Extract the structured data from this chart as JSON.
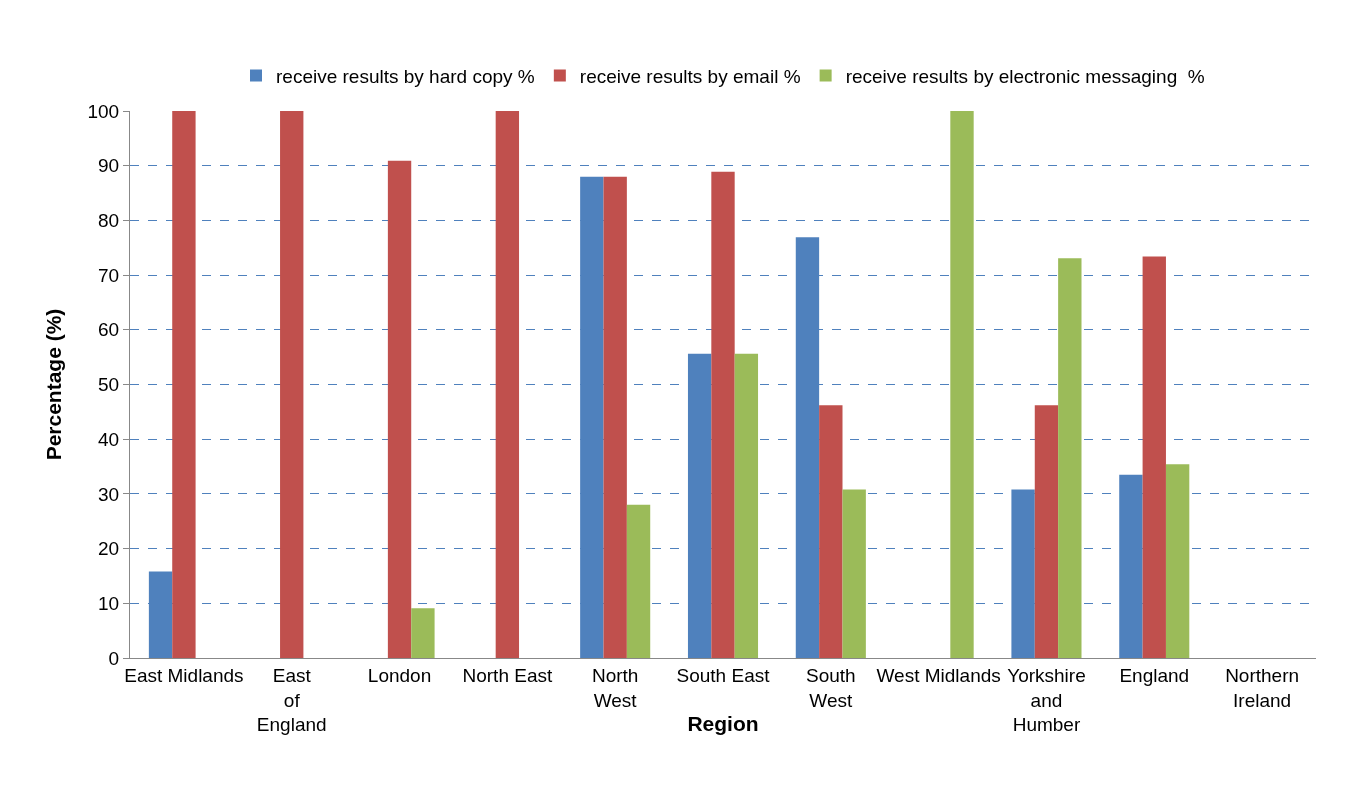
{
  "chart_data": {
    "type": "bar",
    "xlabel": "Region",
    "ylabel": "Percentage (%)",
    "categories": [
      "East Midlands",
      "East of England",
      "London",
      "North East",
      "North West",
      "South East",
      "South West",
      "West Midlands",
      "Yorkshire and Humber",
      "England",
      "Northern Ireland"
    ],
    "series": [
      {
        "name": "receive results by hard copy %",
        "color": "#4f81bd",
        "values": [
          15.8,
          null,
          null,
          null,
          88,
          55.6,
          76.9,
          null,
          30.8,
          33.5,
          null
        ]
      },
      {
        "name": "receive results by email %",
        "color": "#c0504d",
        "values": [
          100,
          100,
          90.9,
          100,
          88,
          88.9,
          46.2,
          null,
          46.2,
          73.4,
          null
        ]
      },
      {
        "name": "receive results by electronic messaging  %",
        "color": "#9bbb59",
        "values": [
          null,
          null,
          9.1,
          null,
          28,
          55.6,
          30.8,
          100,
          73.1,
          35.4,
          null
        ]
      }
    ],
    "ylim": [
      0,
      100
    ],
    "yticks": [
      0,
      10,
      20,
      30,
      40,
      50,
      60,
      70,
      80,
      90,
      100
    ],
    "grid": "y",
    "legend": "top"
  }
}
